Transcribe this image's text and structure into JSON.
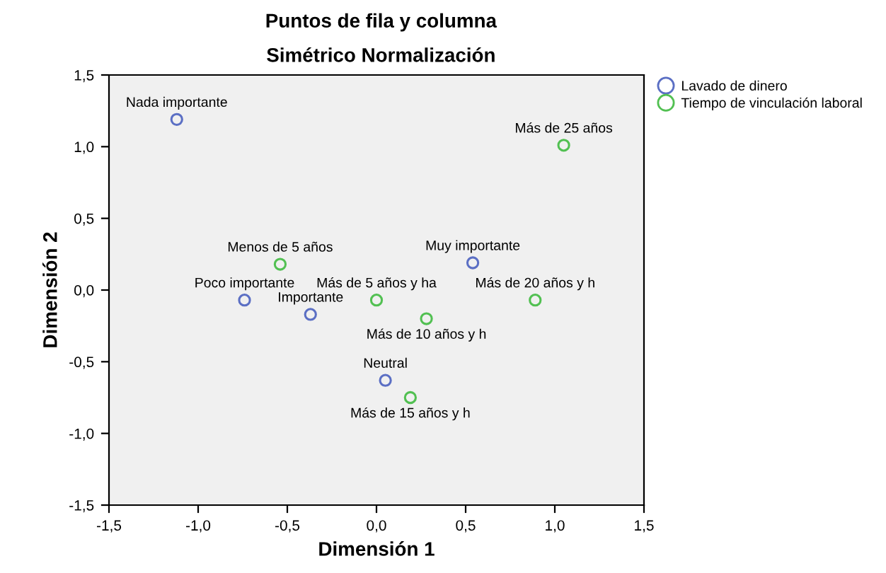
{
  "chart_data": {
    "type": "scatter",
    "title": "Puntos de fila y columna",
    "subtitle": "Simétrico Normalización",
    "xlabel": "Dimensión 1",
    "ylabel": "Dimensión 2",
    "xlim": [
      -1.5,
      1.5
    ],
    "ylim": [
      -1.5,
      1.5
    ],
    "xticks": [
      {
        "value": -1.5,
        "label": "-1,5"
      },
      {
        "value": -1.0,
        "label": "-1,0"
      },
      {
        "value": -0.5,
        "label": "-0,5"
      },
      {
        "value": 0.0,
        "label": "0,0"
      },
      {
        "value": 0.5,
        "label": "0,5"
      },
      {
        "value": 1.0,
        "label": "1,0"
      },
      {
        "value": 1.5,
        "label": "1,5"
      }
    ],
    "yticks": [
      {
        "value": -1.5,
        "label": "-1,5"
      },
      {
        "value": -1.0,
        "label": "-1,0"
      },
      {
        "value": -0.5,
        "label": "-0,5"
      },
      {
        "value": 0.0,
        "label": "0,0"
      },
      {
        "value": 0.5,
        "label": "0,5"
      },
      {
        "value": 1.0,
        "label": "1,0"
      },
      {
        "value": 1.5,
        "label": "1,5"
      }
    ],
    "grid": false,
    "legend": "top right",
    "marker": "circle",
    "series": [
      {
        "name": "Lavado de dinero",
        "color": "#5b6fc4",
        "x": [
          -1.12,
          0.54,
          -0.74,
          -0.37,
          0.05
        ],
        "values": [
          1.19,
          0.19,
          -0.07,
          -0.17,
          -0.63
        ]
      },
      {
        "name": "Tiempo de vinculación laboral",
        "color": "#52c052",
        "x": [
          1.05,
          -0.54,
          0.0,
          0.28,
          0.89,
          0.19
        ],
        "values": [
          1.01,
          0.18,
          -0.07,
          -0.2,
          -0.07,
          -0.75
        ]
      }
    ],
    "annotations": [
      {
        "text": "Nada importante",
        "x": -1.12,
        "y": 1.19
      },
      {
        "text": "Muy importante",
        "x": 0.54,
        "y": 0.19
      },
      {
        "text": "Poco importante",
        "x": -0.74,
        "y": -0.07
      },
      {
        "text": "Importante",
        "x": -0.37,
        "y": -0.17
      },
      {
        "text": "Neutral",
        "x": 0.05,
        "y": -0.63
      },
      {
        "text": "Más de 25 años",
        "x": 1.05,
        "y": 1.01
      },
      {
        "text": "Menos de 5 años",
        "x": -0.54,
        "y": 0.18
      },
      {
        "text": "Más de 5 años y ha",
        "x": 0.0,
        "y": -0.07
      },
      {
        "text": "Más de 10 años y h",
        "x": 0.28,
        "y": -0.2
      },
      {
        "text": "Más de 20 años y h",
        "x": 0.89,
        "y": -0.07
      },
      {
        "text": "Más de 15 años y h",
        "x": 0.19,
        "y": -0.75
      }
    ]
  }
}
